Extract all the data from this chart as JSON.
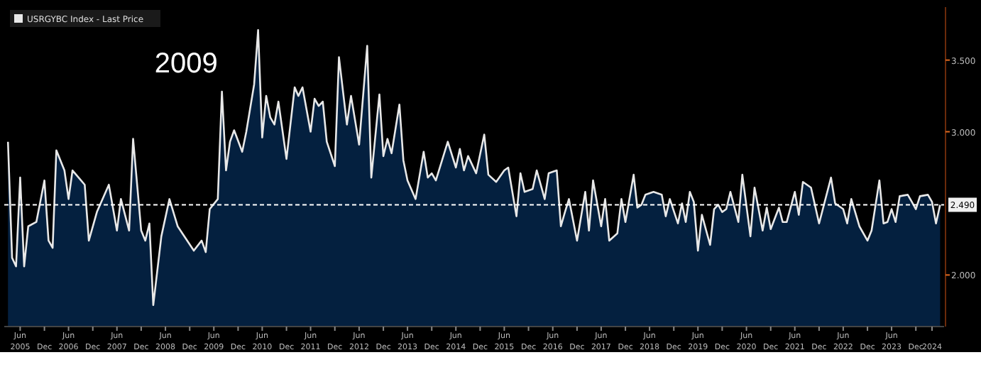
{
  "chart_data": {
    "type": "area",
    "legend": "top left",
    "annotations": [
      "2009"
    ],
    "xlim": [
      "2005-02",
      "2024-07"
    ],
    "ylim": [
      1.64,
      3.87
    ],
    "yticks": [
      {
        "value": 2.0,
        "label": "2.000"
      },
      {
        "value": 3.0,
        "label": "3.000"
      },
      {
        "value": 3.5,
        "label": "3.500"
      }
    ],
    "xticks": [
      {
        "value": "2005-06",
        "label": "Jun\n2005"
      },
      {
        "value": "2005-12",
        "label": "Dec"
      },
      {
        "value": "2006-06",
        "label": "Jun\n2006"
      },
      {
        "value": "2006-12",
        "label": "Dec"
      },
      {
        "value": "2007-06",
        "label": "Jun\n2007"
      },
      {
        "value": "2007-12",
        "label": "Dec"
      },
      {
        "value": "2008-06",
        "label": "Jun\n2008"
      },
      {
        "value": "2008-12",
        "label": "Dec"
      },
      {
        "value": "2009-06",
        "label": "Jun\n2009"
      },
      {
        "value": "2009-12",
        "label": "Dec"
      },
      {
        "value": "2010-06",
        "label": "Jun\n2010"
      },
      {
        "value": "2010-12",
        "label": "Dec"
      },
      {
        "value": "2011-06",
        "label": "Jun\n2011"
      },
      {
        "value": "2011-12",
        "label": "Dec"
      },
      {
        "value": "2012-06",
        "label": "Jun\n2012"
      },
      {
        "value": "2012-12",
        "label": "Dec"
      },
      {
        "value": "2013-06",
        "label": "Jun\n2013"
      },
      {
        "value": "2013-12",
        "label": "Dec"
      },
      {
        "value": "2014-06",
        "label": "Jun\n2014"
      },
      {
        "value": "2014-12",
        "label": "Dec"
      },
      {
        "value": "2015-06",
        "label": "Jun\n2015"
      },
      {
        "value": "2015-12",
        "label": "Dec"
      },
      {
        "value": "2016-06",
        "label": "Jun\n2016"
      },
      {
        "value": "2016-12",
        "label": "Dec"
      },
      {
        "value": "2017-06",
        "label": "Jun\n2017"
      },
      {
        "value": "2017-12",
        "label": "Dec"
      },
      {
        "value": "2018-06",
        "label": "Jun\n2018"
      },
      {
        "value": "2018-12",
        "label": "Dec"
      },
      {
        "value": "2019-06",
        "label": "Jun\n2019"
      },
      {
        "value": "2019-12",
        "label": "Dec"
      },
      {
        "value": "2020-06",
        "label": "Jun\n2020"
      },
      {
        "value": "2020-12",
        "label": "Dec"
      },
      {
        "value": "2021-06",
        "label": "Jun\n2021"
      },
      {
        "value": "2021-12",
        "label": "Dec"
      },
      {
        "value": "2022-06",
        "label": "Jun\n2022"
      },
      {
        "value": "2022-12",
        "label": "Dec"
      },
      {
        "value": "2023-06",
        "label": "Jun\n2023"
      },
      {
        "value": "2023-12",
        "label": "Dec"
      },
      {
        "value": "2024-04",
        "label": "\n2024"
      }
    ],
    "ref_lines": [
      {
        "axis": "y",
        "value": 2.49,
        "label": "2.490",
        "color": "#ffffff",
        "line_style": "dashed"
      }
    ],
    "x": [
      "2005-03",
      "2005-04",
      "2005-05",
      "2005-06",
      "2005-07",
      "2005-08",
      "2005-10",
      "2005-12",
      "2006-01",
      "2006-02",
      "2006-03",
      "2006-05",
      "2006-06",
      "2006-07",
      "2006-10",
      "2006-11",
      "2007-01",
      "2007-04",
      "2007-06",
      "2007-07",
      "2007-09",
      "2007-10",
      "2007-12",
      "2008-01",
      "2008-02",
      "2008-03",
      "2008-05",
      "2008-07",
      "2008-09",
      "2009-01",
      "2009-03",
      "2009-04",
      "2009-05",
      "2009-07",
      "2009-08",
      "2009-09",
      "2009-10",
      "2009-11",
      "2010-01",
      "2010-02",
      "2010-04",
      "2010-05",
      "2010-06",
      "2010-07",
      "2010-08",
      "2010-09",
      "2010-10",
      "2010-12",
      "2011-02",
      "2011-03",
      "2011-04",
      "2011-06",
      "2011-07",
      "2011-08",
      "2011-09",
      "2011-10",
      "2011-12",
      "2012-01",
      "2012-03",
      "2012-04",
      "2012-06",
      "2012-08",
      "2012-09",
      "2012-11",
      "2012-12",
      "2013-01",
      "2013-02",
      "2013-04",
      "2013-05",
      "2013-06",
      "2013-08",
      "2013-10",
      "2013-11",
      "2013-12",
      "2014-01",
      "2014-04",
      "2014-06",
      "2014-07",
      "2014-08",
      "2014-09",
      "2014-11",
      "2015-01",
      "2015-02",
      "2015-04",
      "2015-06",
      "2015-07",
      "2015-09",
      "2015-10",
      "2015-11",
      "2016-01",
      "2016-02",
      "2016-04",
      "2016-05",
      "2016-07",
      "2016-08",
      "2016-09",
      "2016-10",
      "2016-12",
      "2017-02",
      "2017-03",
      "2017-04",
      "2017-06",
      "2017-07",
      "2017-08",
      "2017-10",
      "2017-11",
      "2017-12",
      "2018-02",
      "2018-03",
      "2018-04",
      "2018-05",
      "2018-07",
      "2018-09",
      "2018-10",
      "2018-11",
      "2019-01",
      "2019-02",
      "2019-03",
      "2019-04",
      "2019-05",
      "2019-06",
      "2019-07",
      "2019-09",
      "2019-10",
      "2019-11",
      "2019-12",
      "2020-01",
      "2020-02",
      "2020-04",
      "2020-05",
      "2020-07",
      "2020-08",
      "2020-10",
      "2020-11",
      "2020-12",
      "2021-02",
      "2021-03",
      "2021-04",
      "2021-06",
      "2021-07",
      "2021-08",
      "2021-10",
      "2021-12",
      "2022-03",
      "2022-04",
      "2022-06",
      "2022-07",
      "2022-08",
      "2022-10",
      "2022-12",
      "2023-01",
      "2023-03",
      "2023-04",
      "2023-05",
      "2023-06",
      "2023-07",
      "2023-08",
      "2023-10",
      "2023-11",
      "2023-12",
      "2024-01",
      "2024-03",
      "2024-04",
      "2024-05",
      "2024-06"
    ],
    "series": [
      {
        "name": "USRGYBC Index - Last Price",
        "color": "#e8e8e8",
        "values": [
          2.93,
          2.12,
          2.06,
          2.68,
          2.06,
          2.34,
          2.37,
          2.66,
          2.24,
          2.19,
          2.87,
          2.73,
          2.53,
          2.73,
          2.63,
          2.24,
          2.44,
          2.63,
          2.31,
          2.53,
          2.31,
          2.95,
          2.31,
          2.24,
          2.36,
          1.79,
          2.27,
          2.53,
          2.34,
          2.17,
          2.24,
          2.16,
          2.46,
          2.53,
          3.28,
          2.73,
          2.93,
          3.01,
          2.86,
          3.0,
          3.33,
          3.71,
          2.96,
          3.25,
          3.1,
          3.05,
          3.21,
          2.81,
          3.31,
          3.25,
          3.31,
          3.0,
          3.23,
          3.18,
          3.21,
          2.93,
          2.76,
          3.52,
          3.05,
          3.25,
          2.91,
          3.6,
          2.68,
          3.26,
          2.83,
          2.95,
          2.85,
          3.19,
          2.8,
          2.66,
          2.53,
          2.86,
          2.68,
          2.71,
          2.66,
          2.93,
          2.75,
          2.88,
          2.73,
          2.83,
          2.71,
          2.98,
          2.7,
          2.65,
          2.73,
          2.75,
          2.41,
          2.71,
          2.58,
          2.6,
          2.73,
          2.53,
          2.71,
          2.73,
          2.34,
          2.44,
          2.53,
          2.24,
          2.58,
          2.31,
          2.66,
          2.34,
          2.53,
          2.24,
          2.29,
          2.53,
          2.37,
          2.7,
          2.47,
          2.49,
          2.56,
          2.58,
          2.56,
          2.41,
          2.53,
          2.36,
          2.5,
          2.37,
          2.58,
          2.51,
          2.17,
          2.42,
          2.21,
          2.46,
          2.49,
          2.44,
          2.46,
          2.58,
          2.37,
          2.7,
          2.27,
          2.61,
          2.31,
          2.47,
          2.32,
          2.47,
          2.37,
          2.37,
          2.58,
          2.42,
          2.65,
          2.61,
          2.36,
          2.68,
          2.5,
          2.46,
          2.36,
          2.53,
          2.34,
          2.24,
          2.31,
          2.66,
          2.36,
          2.37,
          2.46,
          2.37,
          2.55,
          2.56,
          2.51,
          2.46,
          2.55,
          2.56,
          2.51,
          2.36,
          2.49
        ]
      }
    ]
  }
}
